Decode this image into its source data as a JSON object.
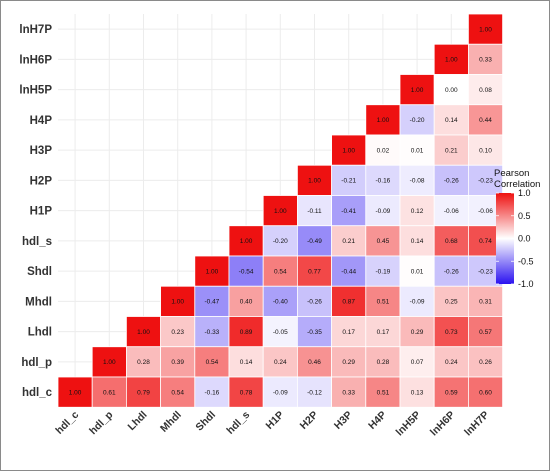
{
  "chart_data": {
    "type": "heatmap",
    "title": "",
    "row_labels": [
      "lnH7P",
      "lnH6P",
      "lnH5P",
      "H4P",
      "H3P",
      "H2P",
      "H1P",
      "hdl_s",
      "Shdl",
      "Mhdl",
      "Lhdl",
      "hdl_p",
      "hdl_c"
    ],
    "col_labels": [
      "hdl_c",
      "hdl_p",
      "Lhdl",
      "Mhdl",
      "Shdl",
      "hdl_s",
      "H1P",
      "H2P",
      "H3P",
      "H4P",
      "lnH5P",
      "lnH6P",
      "lnH7P"
    ],
    "cell_values": [
      [
        null,
        null,
        null,
        null,
        null,
        null,
        null,
        null,
        null,
        null,
        null,
        null,
        1.0
      ],
      [
        null,
        null,
        null,
        null,
        null,
        null,
        null,
        null,
        null,
        null,
        null,
        1.0,
        0.33
      ],
      [
        null,
        null,
        null,
        null,
        null,
        null,
        null,
        null,
        null,
        null,
        1.0,
        0.0,
        0.08
      ],
      [
        null,
        null,
        null,
        null,
        null,
        null,
        null,
        null,
        null,
        1.0,
        -0.2,
        0.14,
        0.44
      ],
      [
        null,
        null,
        null,
        null,
        null,
        null,
        null,
        null,
        1.0,
        0.02,
        0.01,
        0.21,
        0.1
      ],
      [
        null,
        null,
        null,
        null,
        null,
        null,
        null,
        1.0,
        -0.21,
        -0.16,
        -0.08,
        -0.26,
        -0.23
      ],
      [
        null,
        null,
        null,
        null,
        null,
        null,
        1.0,
        -0.11,
        -0.41,
        -0.09,
        0.12,
        -0.06,
        -0.06
      ],
      [
        null,
        null,
        null,
        null,
        null,
        1.0,
        -0.2,
        -0.49,
        0.21,
        0.45,
        0.14,
        0.68,
        0.74
      ],
      [
        null,
        null,
        null,
        null,
        1.0,
        -0.54,
        0.54,
        0.77,
        -0.44,
        -0.19,
        0.01,
        -0.26,
        -0.23
      ],
      [
        null,
        null,
        null,
        1.0,
        -0.47,
        0.4,
        -0.4,
        -0.26,
        0.87,
        0.51,
        -0.09,
        0.25,
        0.31
      ],
      [
        null,
        null,
        1.0,
        0.23,
        -0.33,
        0.89,
        -0.05,
        -0.35,
        0.17,
        0.17,
        0.29,
        0.73,
        0.57
      ],
      [
        null,
        1.0,
        0.28,
        0.39,
        0.54,
        0.14,
        0.24,
        0.46,
        0.29,
        0.28,
        0.07,
        0.24,
        0.26
      ],
      [
        1.0,
        0.61,
        0.79,
        0.54,
        -0.16,
        0.78,
        -0.09,
        -0.12,
        0.33,
        0.51,
        0.13,
        0.59,
        0.6
      ]
    ],
    "value_range": [
      -1,
      1
    ],
    "grid": true,
    "legend": {
      "title_lines": [
        "Pearson",
        "Correlation"
      ],
      "ticks": [
        1.0,
        0.5,
        0.0,
        -0.5,
        -1.0
      ],
      "tick_labels": [
        "1.0",
        "0.5",
        "0.0",
        "-0.5",
        "-1.0"
      ],
      "placement": "right"
    },
    "colors": {
      "low": "#2b12f0",
      "mid": "#ffffff",
      "high": "#ee1111"
    }
  }
}
